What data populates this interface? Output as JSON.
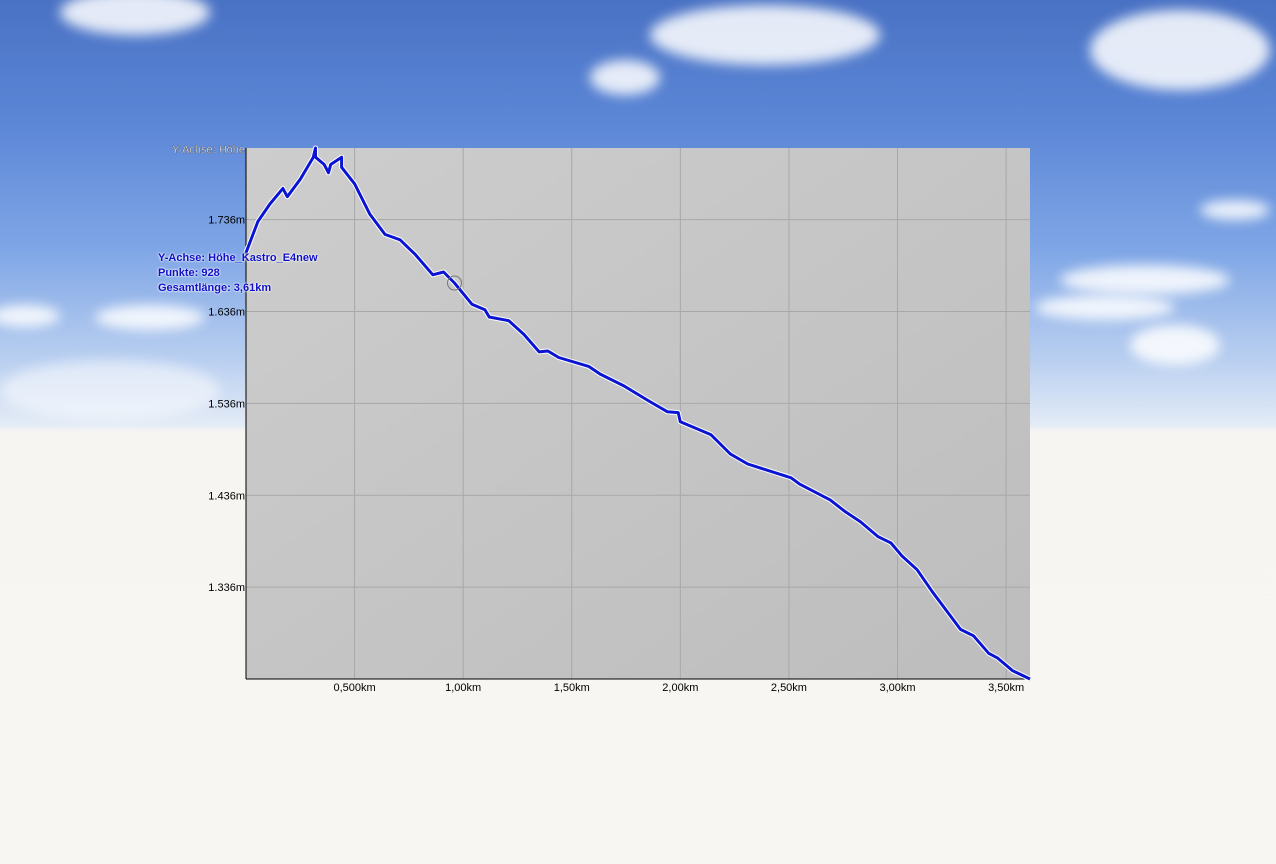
{
  "chart_data": {
    "type": "line",
    "ylabel": "Y-Achse: Höhe",
    "x_unit": "km",
    "y_unit": "m",
    "xlim": [
      0,
      3.61
    ],
    "ylim": [
      1236,
      1814
    ],
    "grid": true,
    "x_ticks": [
      0.5,
      1.0,
      1.5,
      2.0,
      2.5,
      3.0,
      3.5
    ],
    "x_tick_labels": [
      "0,500km",
      "1,00km",
      "1,50km",
      "2,00km",
      "2,50km",
      "3,00km",
      "3,50km"
    ],
    "y_ticks": [
      1336,
      1436,
      1536,
      1636,
      1736
    ],
    "y_tick_labels": [
      "1.336m",
      "1.436m",
      "1.536m",
      "1.636m",
      "1.736m"
    ],
    "line_color": "#0a14d2",
    "plot_background": "#c4c4c4",
    "marker": {
      "x": 0.96,
      "y": 1667
    },
    "series": [
      {
        "x": [
          0,
          0.055,
          0.11,
          0.17,
          0.19,
          0.25,
          0.29,
          0.31,
          0.32,
          0.32,
          0.36,
          0.38,
          0.39,
          0.44,
          0.44,
          0.5,
          0.57,
          0.64,
          0.71,
          0.78,
          0.86,
          0.91,
          0.96,
          1.04,
          1.1,
          1.12,
          1.21,
          1.28,
          1.35,
          1.39,
          1.44,
          1.58,
          1.63,
          1.74,
          1.86,
          1.94,
          1.99,
          2.0,
          2.14,
          2.23,
          2.31,
          2.51,
          2.55,
          2.69,
          2.76,
          2.83,
          2.91,
          2.97,
          3.02,
          3.09,
          3.16,
          3.29,
          3.35,
          3.42,
          3.46,
          3.53,
          3.61
        ],
        "y": [
          1700,
          1734,
          1753,
          1770,
          1761,
          1780,
          1796,
          1804,
          1814,
          1804,
          1796,
          1787,
          1796,
          1804,
          1793,
          1775,
          1742,
          1720,
          1714,
          1698,
          1676,
          1679,
          1667,
          1644,
          1638,
          1630,
          1626,
          1611,
          1592,
          1593,
          1586,
          1576,
          1568,
          1555,
          1538,
          1527,
          1526,
          1516,
          1502,
          1481,
          1470,
          1455,
          1448,
          1431,
          1418,
          1407,
          1391,
          1384,
          1370,
          1355,
          1331,
          1290,
          1283,
          1264,
          1259,
          1245,
          1236
        ]
      }
    ]
  },
  "info": {
    "series_label": "Y-Achse: Höhe_Kastro_E4new",
    "points": "Punkte: 928",
    "total_length": "Gesamtlänge: 3,61km"
  }
}
